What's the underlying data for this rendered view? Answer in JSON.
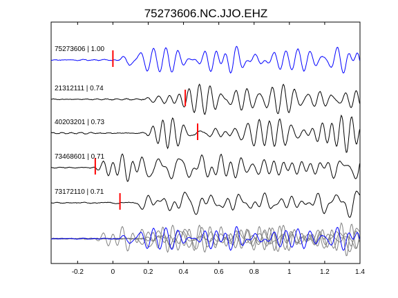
{
  "chart_data": {
    "type": "line",
    "title": "75273606.NC.JJO.EHZ",
    "xlim": [
      -0.35,
      1.4
    ],
    "x_ticks": [
      -0.2,
      0,
      0.2,
      0.4,
      0.6,
      0.8,
      1,
      1.2,
      1.4
    ],
    "x_tick_labels": [
      "-0.2",
      "0",
      "0.2",
      "0.4",
      "0.6",
      "0.8",
      "1",
      "1.2",
      "1.4"
    ],
    "grid": false,
    "colors": {
      "reference": "#0000ff",
      "trace": "#000000",
      "pick": "#ff0000",
      "overlay": "#808080"
    },
    "traces": [
      {
        "label": "75273606 | 1.00",
        "pick_time": 0.0,
        "color": "reference",
        "seed": 11,
        "onset": 0.0
      },
      {
        "label": "21312111 | 0.74",
        "pick_time": 0.41,
        "color": "trace",
        "seed": 23,
        "onset": 0.17
      },
      {
        "label": "40203201 | 0.73",
        "pick_time": 0.48,
        "color": "trace",
        "seed": 37,
        "onset": 0.18
      },
      {
        "label": "73468601 | 0.71",
        "pick_time": -0.1,
        "color": "trace",
        "seed": 41,
        "onset": -0.15
      },
      {
        "label": "73172110 | 0.71",
        "pick_time": 0.04,
        "color": "trace",
        "seed": 53,
        "onset": 0.1
      }
    ],
    "overlay": {
      "reference_color": "reference",
      "others_color": "overlay"
    }
  }
}
